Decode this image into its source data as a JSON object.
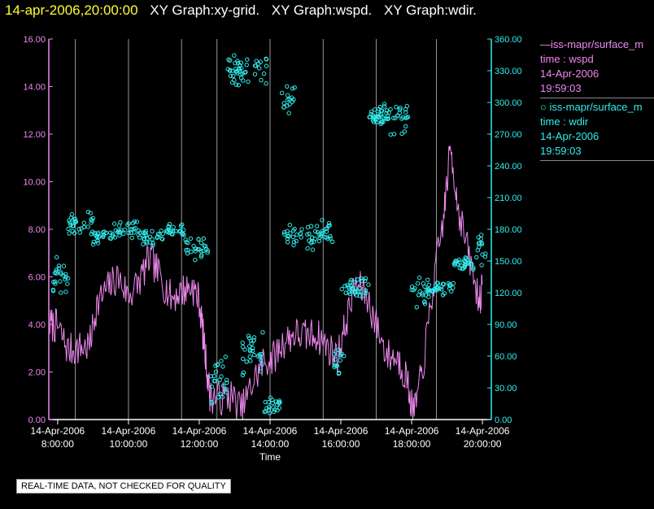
{
  "header": {
    "time": "14-apr-2006,20:00:00",
    "parts": [
      "XY Graph:xy-grid.",
      "XY Graph:wspd.",
      "XY Graph:wdir."
    ]
  },
  "legend": [
    {
      "line1": "—iss-mapr/surface_m",
      "line2": "time : wspd",
      "line3": "14-Apr-2006",
      "line4": "19:59:03"
    },
    {
      "line1": "○ iss-mapr/surface_m",
      "line2": "time : wdir",
      "line3": "14-Apr-2006",
      "line4": "19:59:03"
    }
  ],
  "notice": "REAL-TIME DATA, NOT CHECKED FOR QUALITY",
  "colors": {
    "wspd": "#ee88ee",
    "wdir": "#33eeee",
    "grid": "#999999",
    "axis": "#ffffff"
  },
  "chart_data": {
    "type": "line",
    "xlabel": "Time",
    "xlim": [
      7.75,
      20.25
    ],
    "x_ticks": [
      {
        "value": 8,
        "date": "14-Apr-2006",
        "time": "8:00:00"
      },
      {
        "value": 10,
        "date": "14-Apr-2006",
        "time": "10:00:00"
      },
      {
        "value": 12,
        "date": "14-Apr-2006",
        "time": "12:00:00"
      },
      {
        "value": 14,
        "date": "14-Apr-2006",
        "time": "14:00:00"
      },
      {
        "value": 16,
        "date": "14-Apr-2006",
        "time": "16:00:00"
      },
      {
        "value": 18,
        "date": "14-Apr-2006",
        "time": "18:00:00"
      },
      {
        "value": 20,
        "date": "14-Apr-2006",
        "time": "20:00:00"
      }
    ],
    "y_left": {
      "label": "wspd",
      "lim": [
        0,
        16
      ],
      "ticks": [
        "0.00",
        "2.00",
        "4.00",
        "6.00",
        "8.00",
        "10.00",
        "12.00",
        "14.00",
        "16.00"
      ]
    },
    "y_right": {
      "label": "wdir",
      "lim": [
        0,
        360
      ],
      "ticks": [
        "0.00",
        "30.00",
        "60.00",
        "90.00",
        "120.00",
        "150.00",
        "180.00",
        "210.00",
        "240.00",
        "270.00",
        "300.00",
        "330.00",
        "360.00"
      ]
    },
    "grid_x": [
      8.5,
      10,
      11.5,
      12.5,
      14,
      15.5,
      17,
      18.7
    ],
    "series": [
      {
        "name": "wspd",
        "style": "line",
        "anchors": [
          [
            7.78,
            4.0
          ],
          [
            8.0,
            3.9
          ],
          [
            8.3,
            2.9
          ],
          [
            8.6,
            3.0
          ],
          [
            8.9,
            3.1
          ],
          [
            9.1,
            4.8
          ],
          [
            9.4,
            5.5
          ],
          [
            9.7,
            6.0
          ],
          [
            10.0,
            5.2
          ],
          [
            10.3,
            5.8
          ],
          [
            10.6,
            6.8
          ],
          [
            10.9,
            6.0
          ],
          [
            11.2,
            5.1
          ],
          [
            11.5,
            5.4
          ],
          [
            11.8,
            5.6
          ],
          [
            12.0,
            5.0
          ],
          [
            12.15,
            3.0
          ],
          [
            12.3,
            1.0
          ],
          [
            12.6,
            0.9
          ],
          [
            12.9,
            1.0
          ],
          [
            13.2,
            0.4
          ],
          [
            13.5,
            1.5
          ],
          [
            13.8,
            2.4
          ],
          [
            14.1,
            2.6
          ],
          [
            14.4,
            3.3
          ],
          [
            14.7,
            3.6
          ],
          [
            15.0,
            3.5
          ],
          [
            15.3,
            3.6
          ],
          [
            15.6,
            3.1
          ],
          [
            15.9,
            2.6
          ],
          [
            16.1,
            3.8
          ],
          [
            16.4,
            5.7
          ],
          [
            16.7,
            5.3
          ],
          [
            17.0,
            4.0
          ],
          [
            17.3,
            2.7
          ],
          [
            17.6,
            2.6
          ],
          [
            17.85,
            1.8
          ],
          [
            18.05,
            0.2
          ],
          [
            18.3,
            2.0
          ],
          [
            18.6,
            5.5
          ],
          [
            18.9,
            8.5
          ],
          [
            19.1,
            11.5
          ],
          [
            19.3,
            9.0
          ],
          [
            19.6,
            7.0
          ],
          [
            19.9,
            5.0
          ],
          [
            20.0,
            5.5
          ]
        ],
        "seed": 7,
        "jitter": 0.75
      },
      {
        "name": "wdir",
        "style": "circles",
        "clusters": [
          [
            7.8,
            8.3,
            135,
            20,
            24
          ],
          [
            8.3,
            9.0,
            185,
            12,
            30
          ],
          [
            9.0,
            9.6,
            172,
            8,
            22
          ],
          [
            9.6,
            10.3,
            180,
            10,
            28
          ],
          [
            10.3,
            11.0,
            172,
            10,
            28
          ],
          [
            11.0,
            11.6,
            180,
            7,
            24
          ],
          [
            11.6,
            12.3,
            162,
            12,
            28
          ],
          [
            12.3,
            12.8,
            40,
            28,
            24
          ],
          [
            12.8,
            13.2,
            330,
            18,
            28
          ],
          [
            13.2,
            13.8,
            60,
            30,
            30
          ],
          [
            13.2,
            13.9,
            332,
            18,
            20
          ],
          [
            13.8,
            14.3,
            12,
            12,
            22
          ],
          [
            14.3,
            14.7,
            300,
            22,
            16
          ],
          [
            14.4,
            15.2,
            175,
            15,
            30
          ],
          [
            15.2,
            15.8,
            175,
            15,
            26
          ],
          [
            15.8,
            16.1,
            55,
            15,
            14
          ],
          [
            16.0,
            16.8,
            127,
            12,
            34
          ],
          [
            16.8,
            17.2,
            287,
            12,
            14
          ],
          [
            16.9,
            17.4,
            288,
            15,
            26
          ],
          [
            17.4,
            17.9,
            282,
            20,
            22
          ],
          [
            18.0,
            18.5,
            120,
            15,
            26
          ],
          [
            18.5,
            19.2,
            124,
            8,
            28
          ],
          [
            19.2,
            19.8,
            148,
            8,
            30
          ],
          [
            19.8,
            20.1,
            165,
            20,
            14
          ]
        ],
        "seed": 13
      }
    ]
  }
}
